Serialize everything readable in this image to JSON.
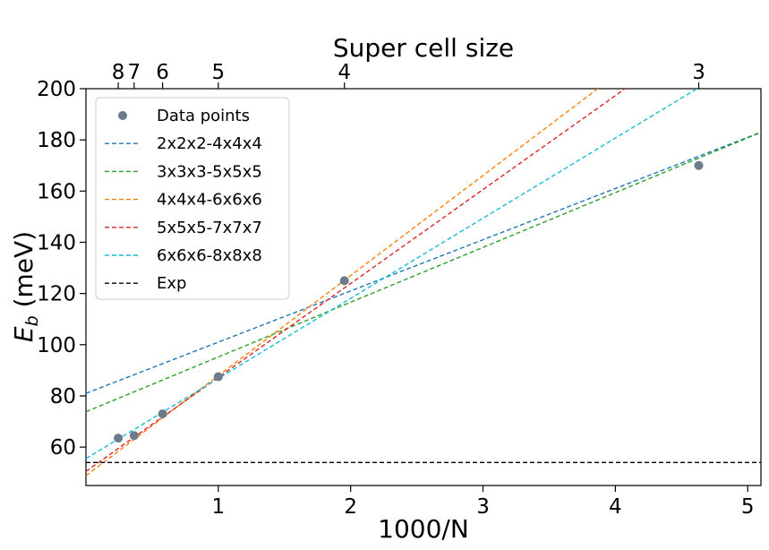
{
  "chart_data": {
    "type": "scatter",
    "title": "",
    "xlabel": "1000/N",
    "ylabel_main": "E",
    "ylabel_sub": "b",
    "ylabel_units": " (meV)",
    "top_xlabel": "Super cell size",
    "xlim": [
      0,
      5.1
    ],
    "ylim": [
      45,
      200
    ],
    "grid": false,
    "legend_position": "top-left",
    "x_ticks": [
      {
        "value": 1,
        "label": "1"
      },
      {
        "value": 2,
        "label": "2"
      },
      {
        "value": 3,
        "label": "3"
      },
      {
        "value": 4,
        "label": "4"
      },
      {
        "value": 5,
        "label": "5"
      }
    ],
    "y_ticks": [
      {
        "value": 60,
        "label": "60"
      },
      {
        "value": 80,
        "label": "80"
      },
      {
        "value": 100,
        "label": "100"
      },
      {
        "value": 120,
        "label": "120"
      },
      {
        "value": 140,
        "label": "140"
      },
      {
        "value": 160,
        "label": "160"
      },
      {
        "value": 180,
        "label": "180"
      },
      {
        "value": 200,
        "label": "200"
      }
    ],
    "top_ticks": [
      {
        "value": 0.244,
        "label": "8"
      },
      {
        "value": 0.364,
        "label": "7"
      },
      {
        "value": 0.579,
        "label": "6"
      },
      {
        "value": 1.0,
        "label": "5"
      },
      {
        "value": 1.953,
        "label": "4"
      },
      {
        "value": 4.63,
        "label": "3"
      }
    ],
    "points_series": {
      "name": "Data points",
      "color": "#6c7a8c",
      "points": [
        {
          "x": 0.244,
          "y": 63.5
        },
        {
          "x": 0.364,
          "y": 64.5
        },
        {
          "x": 0.579,
          "y": 73.0
        },
        {
          "x": 1.0,
          "y": 87.5
        },
        {
          "x": 1.953,
          "y": 125.0
        },
        {
          "x": 4.63,
          "y": 170.0
        }
      ]
    },
    "fit_series": [
      {
        "name": "2x2x2-4x4x4",
        "color": "#1f77b4",
        "slope": 20.0,
        "intercept": 81.0
      },
      {
        "name": "3x3x3-5x5x5",
        "color": "#2ca02c",
        "slope": 21.4,
        "intercept": 73.8
      },
      {
        "name": "4x4x4-6x6x6",
        "color": "#ff7f0e",
        "slope": 39.1,
        "intercept": 48.8
      },
      {
        "name": "5x5x5-7x7x7",
        "color": "#d62728",
        "slope": 36.7,
        "intercept": 50.5
      },
      {
        "name": "6x6x6-8x8x8",
        "color": "#17becf",
        "slope": 31.3,
        "intercept": 55.5
      },
      {
        "name": "Exp",
        "color": "#000000",
        "slope": 0,
        "intercept": 54.0
      }
    ]
  }
}
